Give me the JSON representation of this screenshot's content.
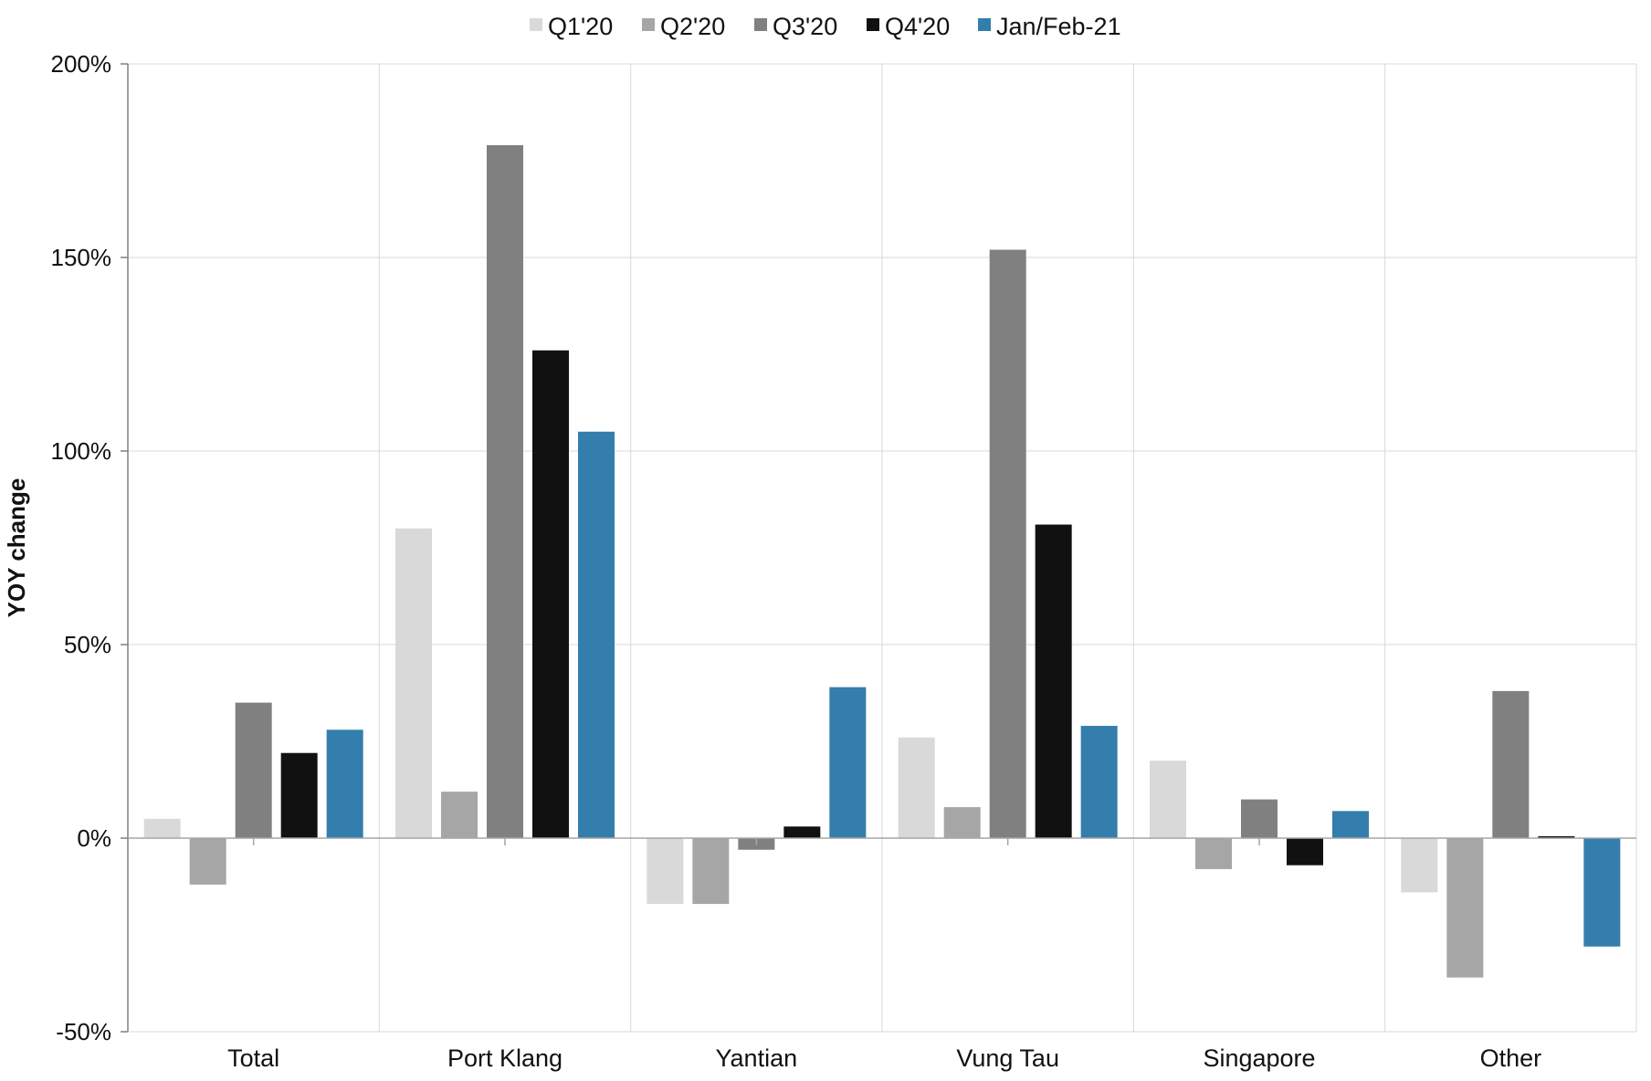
{
  "chart_data": {
    "type": "bar",
    "title": "",
    "xlabel": "",
    "ylabel": "YOY change",
    "ylim": [
      -50,
      200
    ],
    "yticks": [
      -50,
      0,
      50,
      100,
      150,
      200
    ],
    "ytick_labels": [
      "-50%",
      "0%",
      "50%",
      "100%",
      "150%",
      "200%"
    ],
    "grid": true,
    "legend_position": "top",
    "categories": [
      "Total",
      "Port Klang",
      "Yantian",
      "Vung Tau",
      "Singapore",
      "Other"
    ],
    "series": [
      {
        "name": "Q1'20",
        "color": "#d9d9d9",
        "values": [
          5,
          80,
          -17,
          26,
          20,
          -14
        ]
      },
      {
        "name": "Q2'20",
        "color": "#a6a6a6",
        "values": [
          -12,
          12,
          -17,
          8,
          -8,
          -36
        ]
      },
      {
        "name": "Q3'20",
        "color": "#808080",
        "values": [
          35,
          179,
          -3,
          152,
          10,
          38
        ]
      },
      {
        "name": "Q4'20",
        "color": "#111111",
        "values": [
          22,
          126,
          3,
          81,
          -7,
          0.5
        ]
      },
      {
        "name": "Jan/Feb-21",
        "color": "#337eac",
        "values": [
          28,
          105,
          39,
          29,
          7,
          -28
        ]
      }
    ]
  }
}
